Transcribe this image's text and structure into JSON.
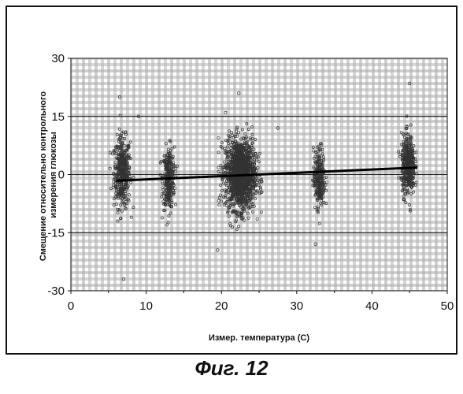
{
  "chart_data": {
    "type": "scatter",
    "xlabel": "Измер. температура (С)",
    "ylabel": [
      "Смещение относительно контрольного",
      "измерения глюкозы"
    ],
    "xlim": [
      0,
      50
    ],
    "ylim": [
      -30,
      30
    ],
    "x_ticks": [
      "0",
      "10",
      "20",
      "30",
      "40",
      "50"
    ],
    "y_ticks": [
      "-30",
      "-15",
      "0",
      "15",
      "30"
    ],
    "grid": true,
    "reference_lines_y": [
      -15,
      0,
      15
    ],
    "trendline": {
      "x": [
        6,
        46
      ],
      "y": [
        -1.6,
        1.8
      ]
    },
    "clusters": [
      {
        "x_center": 6.8,
        "x_spread": 1.0,
        "y_center": 0.5,
        "y_spread": 4.5,
        "y_min": -12,
        "y_max": 18,
        "count": 420
      },
      {
        "x_center": 13.0,
        "x_spread": 0.7,
        "y_center": -1.0,
        "y_spread": 4.0,
        "y_min": -13,
        "y_max": 12,
        "count": 300
      },
      {
        "x_center": 22.5,
        "x_spread": 1.8,
        "y_center": 0.0,
        "y_spread": 4.5,
        "y_min": -18,
        "y_max": 21,
        "count": 1500
      },
      {
        "x_center": 33.0,
        "x_spread": 0.7,
        "y_center": -1.0,
        "y_spread": 3.8,
        "y_min": -18,
        "y_max": 8,
        "count": 260
      },
      {
        "x_center": 44.8,
        "x_spread": 0.8,
        "y_center": 2.5,
        "y_spread": 3.8,
        "y_min": -12,
        "y_max": 23,
        "count": 420
      }
    ],
    "outliers": [
      {
        "x": 7.0,
        "y": -27
      },
      {
        "x": 6.5,
        "y": 20
      },
      {
        "x": 19.5,
        "y": -19.5
      },
      {
        "x": 22.3,
        "y": 21
      },
      {
        "x": 32.5,
        "y": -18
      },
      {
        "x": 45.0,
        "y": 23.5
      },
      {
        "x": 9.0,
        "y": 15
      },
      {
        "x": 27.5,
        "y": 12
      }
    ],
    "colors": {
      "point": "#333333",
      "line": "#000000",
      "grid": "#9a9a9a",
      "band_dark": "#b4b4b4",
      "band_light": "#d8d8d8"
    }
  },
  "caption": "Фиг. 12"
}
